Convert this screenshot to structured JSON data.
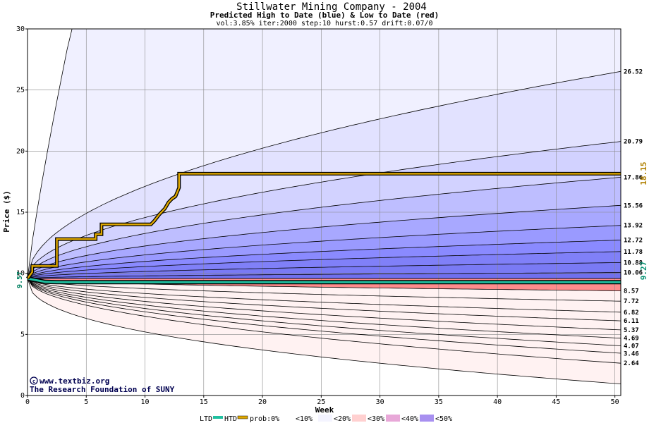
{
  "chart_data": {
    "type": "area",
    "title": "Stillwater Mining Company - 2004",
    "subtitle": "Predicted High to Date (blue) &  Low to Date (red)",
    "params": "vol:3.85% iter:2000 step:10 hurst:0.57 drift:0.07/0",
    "xlabel": "Week",
    "ylabel": "Price ($)",
    "xlim": [
      0,
      50.5
    ],
    "ylim": [
      0,
      30
    ],
    "x_ticks": [
      0,
      5,
      10,
      15,
      20,
      25,
      30,
      35,
      40,
      45,
      50
    ],
    "y_ticks": [
      0,
      5,
      10,
      15,
      20,
      25,
      30
    ],
    "grid": true,
    "start_price": 9.57,
    "start_label": "9.57",
    "high_quantile_endpoints": [
      {
        "label": "26.52",
        "value": 26.52
      },
      {
        "label": "20.79",
        "value": 20.79
      },
      {
        "label": "17.86",
        "value": 17.86
      },
      {
        "label": "15.56",
        "value": 15.56
      },
      {
        "label": "13.92",
        "value": 13.92
      },
      {
        "label": "12.72",
        "value": 12.72
      },
      {
        "label": "11.78",
        "value": 11.78
      },
      {
        "label": "10.88",
        "value": 10.88
      },
      {
        "label": "10.06",
        "value": 10.06
      }
    ],
    "low_quantile_endpoints": [
      {
        "label": "8.57",
        "value": 8.57
      },
      {
        "label": "7.72",
        "value": 7.72
      },
      {
        "label": "6.82",
        "value": 6.82
      },
      {
        "label": "6.11",
        "value": 6.11
      },
      {
        "label": "5.37",
        "value": 5.37
      },
      {
        "label": "4.69",
        "value": 4.69
      },
      {
        "label": "4.07",
        "value": 4.07
      },
      {
        "label": "3.46",
        "value": 3.46
      },
      {
        "label": "2.64",
        "value": 2.64
      }
    ],
    "htd_final": {
      "label": "18.15",
      "value": 18.15
    },
    "ltd_final": {
      "label": "9.27",
      "value": 9.27
    },
    "htd_series": {
      "x": [
        0,
        0.4,
        0.4,
        2.5,
        2.5,
        5.8,
        5.8,
        6.3,
        6.3,
        10.5,
        10.8,
        11.2,
        11.7,
        12.0,
        12.3,
        12.6,
        12.9,
        12.9,
        50.5
      ],
      "y": [
        9.57,
        10.1,
        10.6,
        10.6,
        12.8,
        12.8,
        13.2,
        13.2,
        14.0,
        14.0,
        14.3,
        14.8,
        15.3,
        15.8,
        16.1,
        16.3,
        17.0,
        18.15,
        18.15
      ]
    },
    "ltd_series": {
      "x": [
        0,
        1.5,
        2.5,
        3.5,
        50.5
      ],
      "y": [
        9.57,
        9.3,
        9.27,
        9.27,
        9.27
      ]
    },
    "credits": [
      "www.textbiz.org",
      "The Research Foundation of SUNY"
    ],
    "legend": {
      "ltd_label": "LTD",
      "htd_label": "HTD",
      "prob_label": "prob:0%",
      "bands": [
        "<10%",
        "<20%",
        "<30%",
        "<40%",
        "<50%"
      ]
    },
    "colors": {
      "ltd": "#20c0a0",
      "htd": "#e0a800",
      "blue_bands": [
        "#eeeeff",
        "#dcdcff",
        "#c8c8ff",
        "#a8a8ff",
        "#8c8cff"
      ],
      "red_bands": [
        "#fff0f0",
        "#ffe0e0",
        "#ffc8c8",
        "#ffb0b0",
        "#ff9090"
      ],
      "legend_swatches": [
        "#ffffff",
        "#f4f4ff",
        "#ffd0d0",
        "#e8a8d8",
        "#a890f0"
      ]
    }
  }
}
